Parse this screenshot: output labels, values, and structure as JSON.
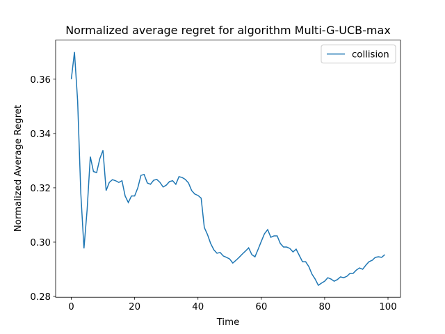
{
  "chart_data": {
    "type": "line",
    "title": "Normalized average regret for algorithm Multi-G-UCB-max",
    "x_label": "Time",
    "y_label": "Normalized Average Regret",
    "x": [
      0,
      1,
      2,
      3,
      4,
      5,
      6,
      7,
      8,
      9,
      10,
      11,
      12,
      13,
      14,
      15,
      16,
      17,
      18,
      19,
      20,
      21,
      22,
      23,
      24,
      25,
      26,
      27,
      28,
      29,
      30,
      31,
      32,
      33,
      34,
      35,
      36,
      37,
      38,
      39,
      40,
      41,
      42,
      43,
      44,
      45,
      46,
      47,
      48,
      49,
      50,
      51,
      52,
      53,
      54,
      55,
      56,
      57,
      58,
      59,
      60,
      61,
      62,
      63,
      64,
      65,
      66,
      67,
      68,
      69,
      70,
      71,
      72,
      73,
      74,
      75,
      76,
      77,
      78,
      79,
      80,
      81,
      82,
      83,
      84,
      85,
      86,
      87,
      88,
      89,
      90,
      91,
      92,
      93,
      94,
      95,
      96,
      97,
      98,
      99
    ],
    "series": [
      {
        "name": "collision",
        "color": "#1f77b4",
        "values": [
          0.36,
          0.37,
          0.352,
          0.318,
          0.2977,
          0.312,
          0.3315,
          0.326,
          0.3256,
          0.3307,
          0.3338,
          0.319,
          0.322,
          0.323,
          0.3226,
          0.322,
          0.3226,
          0.317,
          0.3146,
          0.317,
          0.317,
          0.32,
          0.3246,
          0.3249,
          0.3218,
          0.3213,
          0.3228,
          0.3231,
          0.322,
          0.3203,
          0.321,
          0.3223,
          0.3226,
          0.3213,
          0.3241,
          0.3238,
          0.3231,
          0.3218,
          0.319,
          0.3177,
          0.3172,
          0.3162,
          0.3054,
          0.3028,
          0.2995,
          0.2972,
          0.2959,
          0.2962,
          0.2949,
          0.2944,
          0.2938,
          0.2923,
          0.2933,
          0.2944,
          0.2956,
          0.2967,
          0.2979,
          0.2954,
          0.2946,
          0.2974,
          0.3003,
          0.3031,
          0.3046,
          0.3018,
          0.3023,
          0.3023,
          0.2995,
          0.2982,
          0.2982,
          0.2977,
          0.2964,
          0.2974,
          0.2951,
          0.2928,
          0.2928,
          0.291,
          0.2882,
          0.2864,
          0.2841,
          0.2849,
          0.2856,
          0.2869,
          0.2864,
          0.2856,
          0.2862,
          0.2872,
          0.2869,
          0.2874,
          0.2885,
          0.2885,
          0.2897,
          0.2905,
          0.29,
          0.2915,
          0.2928,
          0.2933,
          0.2944,
          0.2946,
          0.2944,
          0.2954
        ]
      }
    ],
    "xlim": [
      -4.95,
      103.95
    ],
    "ylim": [
      0.2797,
      0.3744
    ],
    "xticks": [
      0,
      20,
      40,
      60,
      80,
      100
    ],
    "yticks": [
      0.28,
      {
        "value": 0.3,
        "label": "0.30"
      },
      0.32,
      0.34,
      0.36
    ],
    "legend": "upper right",
    "grid": false
  }
}
